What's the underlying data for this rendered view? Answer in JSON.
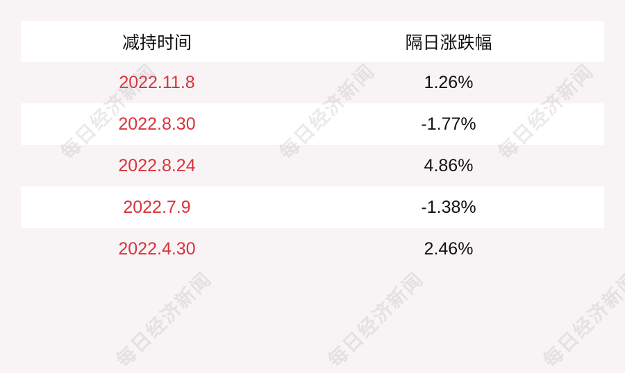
{
  "table": {
    "headers": [
      "减持时间",
      "隔日涨跌幅"
    ],
    "rows": [
      {
        "date": "2022.11.8",
        "change": "1.26%"
      },
      {
        "date": "2022.8.30",
        "change": "-1.77%"
      },
      {
        "date": "2022.8.24",
        "change": "4.86%"
      },
      {
        "date": "2022.7.9",
        "change": "-1.38%"
      },
      {
        "date": "2022.4.30",
        "change": "2.46%"
      }
    ]
  },
  "watermark": "每日经济新闻",
  "colors": {
    "date_text": "#d8323c",
    "background": "#f8f4f5",
    "row_alt": "#ffffff"
  }
}
